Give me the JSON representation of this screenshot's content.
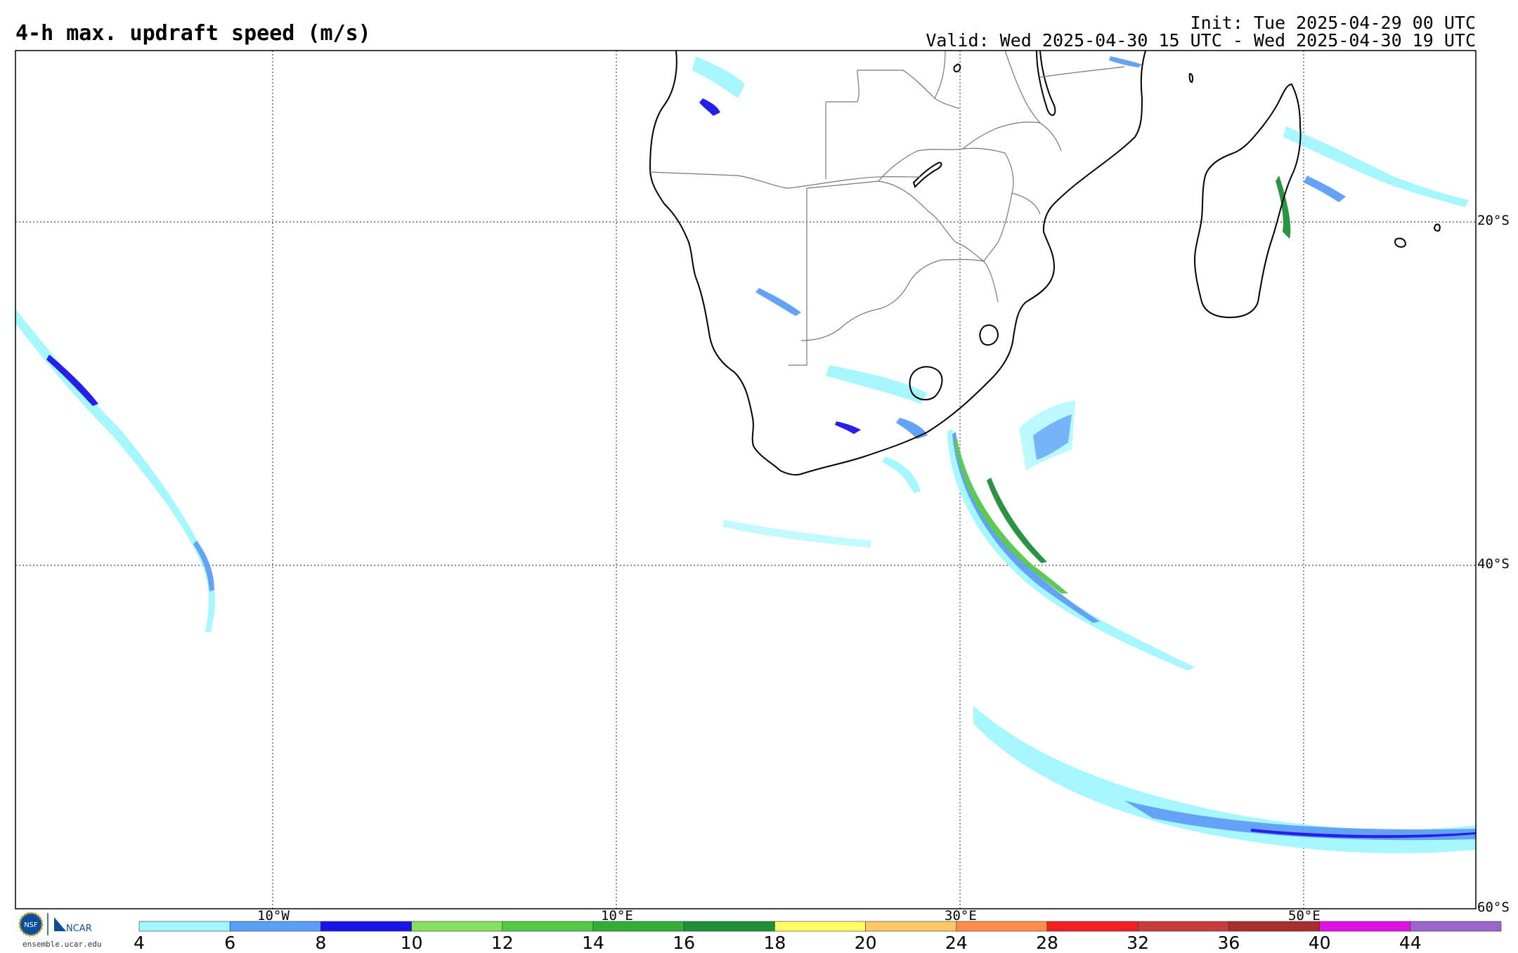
{
  "header": {
    "title": "4-h max. updraft speed (m/s)",
    "init": "Init: Tue 2025-04-29 00 UTC",
    "valid": "Valid: Wed 2025-04-30 15 UTC - Wed 2025-04-30 19 UTC"
  },
  "map": {
    "region": "Southern Africa and South Atlantic / South Indian Ocean",
    "projection": "cylindrical equidistant",
    "lon_range": [
      -20,
      55
    ],
    "lat_range": [
      -60,
      -10
    ],
    "graticule": "dotted",
    "lat_labels": [
      "20°S",
      "40°S",
      "60°S"
    ],
    "lon_labels": [
      "10°W",
      "10°E",
      "30°E",
      "50°E"
    ]
  },
  "colorbar": {
    "ticks": [
      "4",
      "6",
      "8",
      "10",
      "12",
      "14",
      "16",
      "18",
      "20",
      "24",
      "28",
      "32",
      "36",
      "40",
      "44"
    ],
    "colors": [
      "#a2f7ff",
      "#5b9ef5",
      "#1a14e8",
      "#86e060",
      "#55c948",
      "#33ae3a",
      "#1f8f3a",
      "#ffff66",
      "#ffc666",
      "#ff8c4c",
      "#f22020",
      "#c83c3c",
      "#a82e2e",
      "#e010e0",
      "#9966cc"
    ]
  },
  "logos": {
    "nsf": "NSF",
    "ncar": "NCAR",
    "url": "ensemble.ucar.edu"
  }
}
